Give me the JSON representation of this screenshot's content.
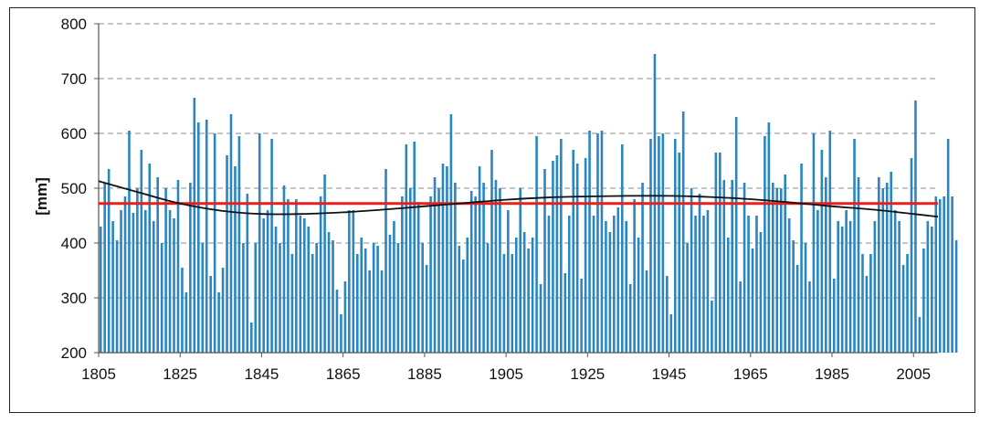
{
  "chart_data": {
    "type": "bar",
    "title": "",
    "xlabel": "",
    "ylabel": "[mm]",
    "ylim": [
      200,
      800
    ],
    "yticks": [
      200,
      300,
      400,
      500,
      600,
      700,
      800
    ],
    "xticks": [
      1805,
      1825,
      1845,
      1865,
      1885,
      1905,
      1925,
      1945,
      1965,
      1985,
      2005
    ],
    "xrange": [
      1805,
      2011
    ],
    "grid": "horizontal dashed",
    "legend": "none",
    "colors": {
      "bars": "#2a86c0",
      "mean_line": "#e8201c",
      "trend_line": "#111111"
    },
    "series": [
      {
        "type": "bar",
        "x_start": 1805,
        "values": [
          430,
          510,
          535,
          440,
          405,
          460,
          485,
          605,
          455,
          500,
          570,
          460,
          545,
          440,
          520,
          400,
          500,
          460,
          445,
          515,
          355,
          310,
          510,
          665,
          620,
          400,
          625,
          340,
          600,
          310,
          355,
          560,
          635,
          540,
          595,
          400,
          490,
          255,
          400,
          600,
          445,
          460,
          590,
          430,
          400,
          505,
          480,
          380,
          480,
          450,
          445,
          430,
          380,
          400,
          485,
          525,
          420,
          405,
          315,
          270,
          330,
          460,
          460,
          380,
          410,
          390,
          350,
          400,
          395,
          350,
          535,
          415,
          440,
          400,
          485,
          580,
          500,
          585,
          475,
          400,
          360,
          485,
          520,
          500,
          545,
          540,
          635,
          510,
          395,
          370,
          410,
          495,
          485,
          540,
          510,
          400,
          570,
          515,
          500,
          380,
          460,
          380,
          410,
          500,
          420,
          390,
          410,
          595,
          325,
          535,
          450,
          550,
          560,
          590,
          345,
          450,
          570,
          545,
          335,
          555,
          605,
          450,
          600,
          605,
          440,
          420,
          450,
          465,
          580,
          440,
          325,
          480,
          410,
          510,
          350,
          590,
          745,
          595,
          600,
          340,
          270,
          590,
          565,
          640,
          400,
          500,
          450,
          490,
          450,
          460,
          295,
          565,
          565,
          515,
          410,
          515,
          630,
          330,
          510,
          450,
          390,
          450,
          420,
          595,
          620,
          510,
          500,
          500,
          525,
          445,
          405,
          360,
          545,
          400,
          330,
          600,
          460,
          570,
          520,
          605,
          335,
          440,
          430,
          460,
          440,
          590,
          520,
          380,
          340,
          380,
          440,
          520,
          500,
          510,
          530,
          460,
          440,
          360,
          380,
          555,
          660,
          265,
          390,
          440,
          430,
          485,
          480,
          485,
          590,
          485,
          405
        ]
      },
      {
        "type": "line",
        "name": "",
        "value": 472
      },
      {
        "type": "line",
        "name": "",
        "x": [
          1805,
          1815,
          1825,
          1835,
          1845,
          1855,
          1865,
          1875,
          1885,
          1895,
          1905,
          1915,
          1925,
          1935,
          1945,
          1955,
          1965,
          1975,
          1985,
          1995,
          2005,
          2011
        ],
        "values": [
          513,
          492,
          472,
          459,
          453,
          453,
          456,
          461,
          467,
          473,
          479,
          483,
          485,
          486,
          486,
          484,
          480,
          474,
          467,
          461,
          453,
          448
        ]
      }
    ]
  }
}
